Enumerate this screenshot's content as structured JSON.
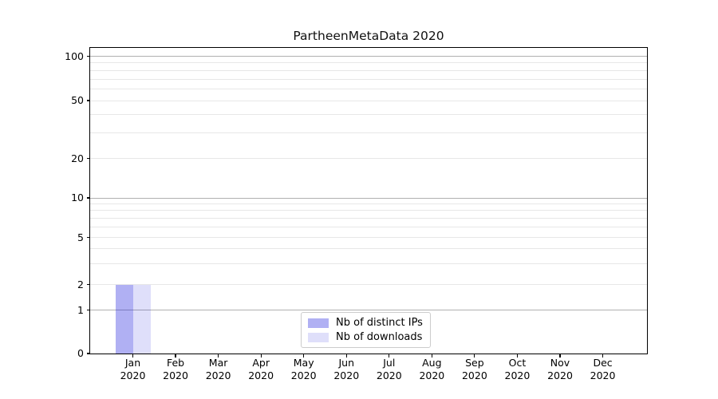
{
  "chart_data": {
    "type": "bar",
    "title": "PartheenMetaData 2020",
    "categories": [
      "Jan",
      "Feb",
      "Mar",
      "Apr",
      "May",
      "Jun",
      "Jul",
      "Aug",
      "Sep",
      "Oct",
      "Nov",
      "Dec"
    ],
    "x_tick_year": "2020",
    "series": [
      {
        "name": "Nb of distinct IPs",
        "color": "rgba(30,30,220,0.35)",
        "values": [
          2,
          0,
          0,
          0,
          0,
          0,
          0,
          0,
          0,
          0,
          0,
          0
        ]
      },
      {
        "name": "Nb of downloads",
        "color": "rgba(30,30,220,0.14)",
        "values": [
          2,
          0,
          0,
          0,
          0,
          0,
          0,
          0,
          0,
          0,
          0,
          0
        ]
      }
    ],
    "xlabel": "",
    "ylabel": "",
    "yscale": "symlog",
    "ylim": [
      0,
      114
    ],
    "yticks": [
      0,
      1,
      2,
      5,
      10,
      20,
      50,
      100
    ],
    "gridlines": {
      "major": [
        1,
        10,
        100
      ],
      "minor": [
        2,
        3,
        4,
        5,
        6,
        7,
        8,
        9,
        20,
        30,
        40,
        50,
        60,
        70,
        80,
        90
      ]
    },
    "grid": true,
    "legend_position": "lower center"
  },
  "colors": {
    "background": "#ffffff",
    "axis": "#000000",
    "major_grid": "#b0b0b0",
    "minor_grid": "#e7e7e7",
    "legend_border": "#cccccc",
    "text": "#000000"
  }
}
